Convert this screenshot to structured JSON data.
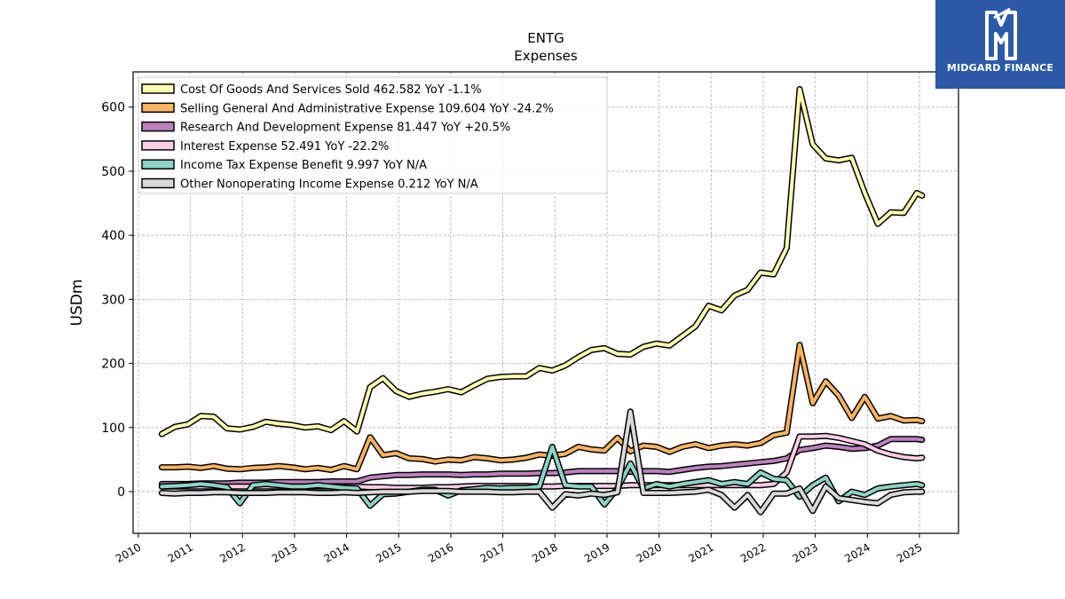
{
  "brand": {
    "name": "MIDGARD FINANCE",
    "bg_color": "#2d5aa7"
  },
  "chart_data": {
    "type": "line",
    "title": "ENTG",
    "subtitle": "Expenses",
    "ylabel": "USDm",
    "xlabel": "",
    "xlim": [
      2009.9,
      2025.75
    ],
    "ylim": [
      -65,
      655
    ],
    "yticks": [
      0,
      100,
      200,
      300,
      400,
      500,
      600
    ],
    "xticks": [
      2010,
      2011,
      2012,
      2013,
      2014,
      2015,
      2016,
      2017,
      2018,
      2019,
      2020,
      2021,
      2022,
      2023,
      2024,
      2025
    ],
    "grid": true,
    "legend_position": "top-left",
    "series": [
      {
        "name": "Cost Of Goods And Services Sold",
        "legend": "Cost Of Goods And Services Sold  462.582 YoY -1.1%",
        "color": "#ffffb3",
        "x": [
          2010.45,
          2010.7,
          2010.95,
          2011.2,
          2011.45,
          2011.7,
          2011.95,
          2012.2,
          2012.45,
          2012.7,
          2012.95,
          2013.2,
          2013.45,
          2013.7,
          2013.95,
          2014.2,
          2014.45,
          2014.7,
          2014.95,
          2015.2,
          2015.45,
          2015.7,
          2015.95,
          2016.2,
          2016.45,
          2016.7,
          2016.95,
          2017.2,
          2017.45,
          2017.7,
          2017.95,
          2018.2,
          2018.45,
          2018.7,
          2018.95,
          2019.2,
          2019.45,
          2019.7,
          2019.95,
          2020.2,
          2020.45,
          2020.7,
          2020.95,
          2021.2,
          2021.45,
          2021.7,
          2021.95,
          2022.2,
          2022.45,
          2022.7,
          2022.95,
          2023.2,
          2023.45,
          2023.7,
          2023.95,
          2024.2,
          2024.45,
          2024.7,
          2024.95,
          2025.05
        ],
        "y": [
          90,
          101,
          105,
          118,
          117,
          99,
          97,
          101,
          109,
          106,
          104,
          100,
          102,
          96,
          110,
          94,
          163,
          177,
          157,
          148,
          153,
          156,
          160,
          155,
          166,
          176,
          179,
          180,
          180,
          193,
          189,
          197,
          210,
          221,
          224,
          215,
          214,
          226,
          231,
          228,
          243,
          258,
          290,
          283,
          306,
          315,
          342,
          339,
          380,
          628,
          542,
          520,
          517,
          521,
          466,
          418,
          436,
          435,
          466,
          462
        ]
      },
      {
        "name": "Selling General And Administrative Expense",
        "legend": "Selling General And Administrative Expense  109.604 YoY -24.2%",
        "color": "#fdb462",
        "x": [
          2010.45,
          2010.7,
          2010.95,
          2011.2,
          2011.45,
          2011.7,
          2011.95,
          2012.2,
          2012.45,
          2012.7,
          2012.95,
          2013.2,
          2013.45,
          2013.7,
          2013.95,
          2014.2,
          2014.45,
          2014.7,
          2014.95,
          2015.2,
          2015.45,
          2015.7,
          2015.95,
          2016.2,
          2016.45,
          2016.7,
          2016.95,
          2017.2,
          2017.45,
          2017.7,
          2017.95,
          2018.2,
          2018.45,
          2018.7,
          2018.95,
          2019.2,
          2019.45,
          2019.7,
          2019.95,
          2020.2,
          2020.45,
          2020.7,
          2020.95,
          2021.2,
          2021.45,
          2021.7,
          2021.95,
          2022.2,
          2022.45,
          2022.7,
          2022.95,
          2023.2,
          2023.45,
          2023.7,
          2023.95,
          2024.2,
          2024.45,
          2024.7,
          2024.95,
          2025.05
        ],
        "y": [
          38,
          38,
          39,
          37,
          40,
          36,
          35,
          37,
          38,
          40,
          38,
          35,
          37,
          34,
          40,
          35,
          85,
          57,
          60,
          52,
          51,
          47,
          50,
          49,
          54,
          52,
          49,
          50,
          53,
          58,
          56,
          59,
          70,
          66,
          64,
          84,
          63,
          72,
          70,
          62,
          70,
          74,
          68,
          72,
          74,
          72,
          76,
          88,
          92,
          229,
          138,
          172,
          150,
          115,
          148,
          114,
          118,
          111,
          112,
          110
        ]
      },
      {
        "name": "Research And Development Expense",
        "legend": "Research And Development Expense  81.447 YoY +20.5%",
        "color": "#bc80bd",
        "x": [
          2010.45,
          2010.7,
          2010.95,
          2011.2,
          2011.45,
          2011.7,
          2011.95,
          2012.2,
          2012.45,
          2012.7,
          2012.95,
          2013.2,
          2013.45,
          2013.7,
          2013.95,
          2014.2,
          2014.45,
          2014.7,
          2014.95,
          2015.2,
          2015.45,
          2015.7,
          2015.95,
          2016.2,
          2016.45,
          2016.7,
          2016.95,
          2017.2,
          2017.45,
          2017.7,
          2017.95,
          2018.2,
          2018.45,
          2018.7,
          2018.95,
          2019.2,
          2019.45,
          2019.7,
          2019.95,
          2020.2,
          2020.45,
          2020.7,
          2020.95,
          2021.2,
          2021.45,
          2021.7,
          2021.95,
          2022.2,
          2022.45,
          2022.7,
          2022.95,
          2023.2,
          2023.45,
          2023.7,
          2023.95,
          2024.2,
          2024.45,
          2024.7,
          2024.95,
          2025.05
        ],
        "y": [
          12,
          12,
          12,
          13,
          13,
          13,
          14,
          14,
          14,
          15,
          15,
          15,
          15,
          16,
          16,
          16,
          22,
          24,
          26,
          26,
          27,
          27,
          27,
          26,
          27,
          27,
          28,
          28,
          28,
          29,
          29,
          30,
          32,
          32,
          32,
          32,
          31,
          32,
          32,
          31,
          34,
          37,
          39,
          40,
          42,
          44,
          46,
          48,
          52,
          65,
          68,
          72,
          70,
          67,
          68,
          72,
          82,
          82,
          82,
          81
        ]
      },
      {
        "name": "Interest Expense",
        "legend": "Interest Expense  52.491 YoY -22.2%",
        "color": "#fccde5",
        "x": [
          2010.45,
          2010.7,
          2010.95,
          2011.2,
          2011.45,
          2011.7,
          2011.95,
          2012.2,
          2012.45,
          2012.7,
          2012.95,
          2013.2,
          2013.45,
          2013.7,
          2013.95,
          2014.2,
          2014.45,
          2014.7,
          2014.95,
          2015.2,
          2015.45,
          2015.7,
          2015.95,
          2016.2,
          2016.45,
          2016.7,
          2016.95,
          2017.2,
          2017.45,
          2017.7,
          2017.95,
          2018.2,
          2018.45,
          2018.7,
          2018.95,
          2019.2,
          2019.45,
          2019.7,
          2019.95,
          2020.2,
          2020.45,
          2020.7,
          2020.95,
          2021.2,
          2021.45,
          2021.7,
          2021.95,
          2022.2,
          2022.45,
          2022.7,
          2022.95,
          2023.2,
          2023.45,
          2023.7,
          2023.95,
          2024.2,
          2024.45,
          2024.7,
          2024.95,
          2025.05
        ],
        "y": [
          8,
          8,
          8,
          8,
          8,
          8,
          8,
          8,
          8,
          8,
          8,
          8,
          8,
          8,
          8,
          8,
          7,
          7,
          6,
          6,
          6,
          7,
          7,
          8,
          9,
          9,
          9,
          9,
          9,
          8,
          8,
          9,
          9,
          9,
          9,
          9,
          10,
          10,
          10,
          10,
          10,
          10,
          10,
          10,
          10,
          10,
          10,
          12,
          30,
          86,
          86,
          87,
          84,
          79,
          74,
          64,
          58,
          54,
          52,
          53
        ]
      },
      {
        "name": "Income Tax Expense Benefit",
        "legend": "Income Tax Expense Benefit  9.997 YoY N/A",
        "color": "#8dd3c7",
        "x": [
          2010.45,
          2010.7,
          2010.95,
          2011.2,
          2011.45,
          2011.7,
          2011.95,
          2012.2,
          2012.45,
          2012.7,
          2012.95,
          2013.2,
          2013.45,
          2013.7,
          2013.95,
          2014.2,
          2014.45,
          2014.7,
          2014.95,
          2015.2,
          2015.45,
          2015.7,
          2015.95,
          2016.2,
          2016.45,
          2016.7,
          2016.95,
          2017.2,
          2017.45,
          2017.7,
          2017.95,
          2018.2,
          2018.45,
          2018.7,
          2018.95,
          2019.2,
          2019.45,
          2019.7,
          2019.95,
          2020.2,
          2020.45,
          2020.7,
          2020.95,
          2021.2,
          2021.45,
          2021.7,
          2021.95,
          2022.2,
          2022.45,
          2022.7,
          2022.95,
          2023.2,
          2023.45,
          2023.7,
          2023.95,
          2024.2,
          2024.45,
          2024.7,
          2024.95,
          2025.05
        ],
        "y": [
          8,
          9,
          10,
          12,
          10,
          7,
          -18,
          10,
          12,
          10,
          8,
          8,
          10,
          8,
          6,
          5,
          -22,
          -4,
          -3,
          0,
          3,
          3,
          -6,
          2,
          4,
          6,
          5,
          6,
          6,
          8,
          70,
          10,
          8,
          8,
          -20,
          5,
          44,
          5,
          12,
          8,
          12,
          15,
          18,
          12,
          15,
          12,
          30,
          20,
          18,
          -8,
          10,
          22,
          -15,
          0,
          -5,
          5,
          8,
          10,
          12,
          10
        ]
      },
      {
        "name": "Other Nonoperating Income Expense",
        "legend": "Other Nonoperating Income Expense  0.212 YoY N/A",
        "color": "#d9d9d9",
        "x": [
          2010.45,
          2010.7,
          2010.95,
          2011.2,
          2011.45,
          2011.7,
          2011.95,
          2012.2,
          2012.45,
          2012.7,
          2012.95,
          2013.2,
          2013.45,
          2013.7,
          2013.95,
          2014.2,
          2014.45,
          2014.7,
          2014.95,
          2015.2,
          2015.45,
          2015.7,
          2015.95,
          2016.2,
          2016.45,
          2016.7,
          2016.95,
          2017.2,
          2017.45,
          2017.7,
          2017.95,
          2018.2,
          2018.45,
          2018.7,
          2018.95,
          2019.2,
          2019.45,
          2019.7,
          2019.95,
          2020.2,
          2020.45,
          2020.7,
          2020.95,
          2021.2,
          2021.45,
          2021.7,
          2021.95,
          2022.2,
          2022.45,
          2022.7,
          2022.95,
          2023.2,
          2023.45,
          2023.7,
          2023.95,
          2024.2,
          2024.45,
          2024.7,
          2024.95,
          2025.05
        ],
        "y": [
          -2,
          -3,
          -2,
          -2,
          -1,
          -1,
          -2,
          -2,
          -2,
          -1,
          -1,
          -1,
          -2,
          -2,
          -1,
          -2,
          -1,
          0,
          0,
          0,
          1,
          1,
          1,
          0,
          0,
          0,
          -1,
          -1,
          0,
          0,
          -25,
          -4,
          -6,
          -3,
          -5,
          -1,
          125,
          -2,
          -2,
          -2,
          -1,
          0,
          3,
          -5,
          -25,
          -5,
          -32,
          -3,
          -3,
          5,
          -30,
          8,
          -10,
          -13,
          -16,
          -18,
          -5,
          -1,
          0,
          0
        ]
      }
    ]
  }
}
